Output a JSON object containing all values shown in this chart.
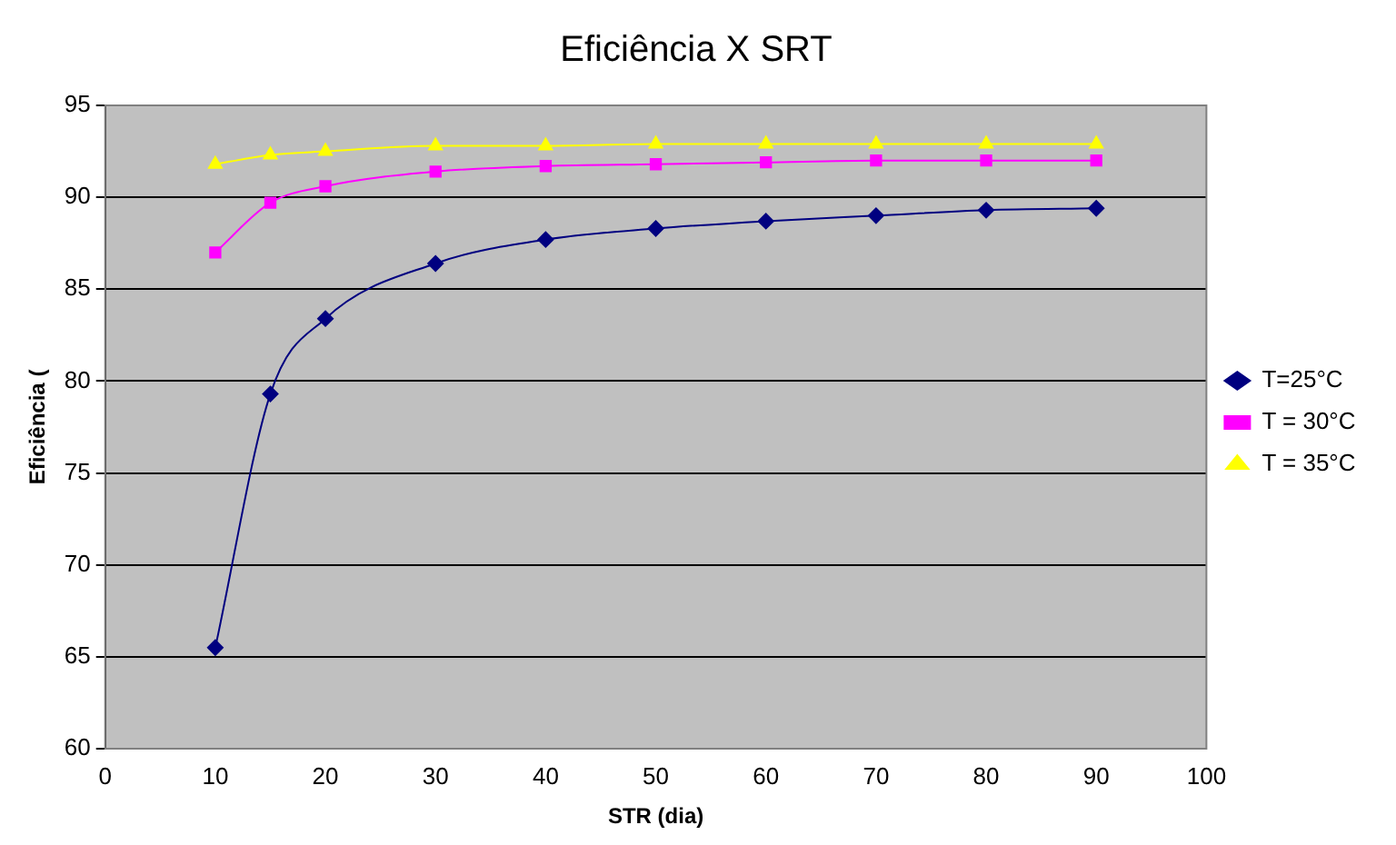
{
  "chart_data": {
    "type": "line",
    "title": "Eficiência X SRT",
    "xlabel": "STR (dia)",
    "ylabel": "Eficiência (",
    "x": [
      10,
      15,
      20,
      30,
      40,
      50,
      60,
      70,
      80,
      90
    ],
    "series": [
      {
        "name": "T=25°C",
        "color": "#000080",
        "marker": "diamond",
        "values": [
          65.5,
          79.3,
          83.4,
          86.4,
          87.7,
          88.3,
          88.7,
          89.0,
          89.3,
          89.4
        ]
      },
      {
        "name": "T = 30°C",
        "color": "#ff00ff",
        "marker": "square",
        "values": [
          87.0,
          89.7,
          90.6,
          91.4,
          91.7,
          91.8,
          91.9,
          92.0,
          92.0,
          92.0
        ]
      },
      {
        "name": "T = 35°C",
        "color": "#ffff00",
        "marker": "triangle",
        "values": [
          91.8,
          92.3,
          92.5,
          92.8,
          92.8,
          92.9,
          92.9,
          92.9,
          92.9,
          92.9
        ]
      }
    ],
    "xlim": [
      0,
      100
    ],
    "xticks": [
      0,
      10,
      20,
      30,
      40,
      50,
      60,
      70,
      80,
      90,
      100
    ],
    "ylim": [
      60,
      95
    ],
    "yticks": [
      60,
      65,
      70,
      75,
      80,
      85,
      90,
      95
    ],
    "grid": "y",
    "legend": "right"
  }
}
